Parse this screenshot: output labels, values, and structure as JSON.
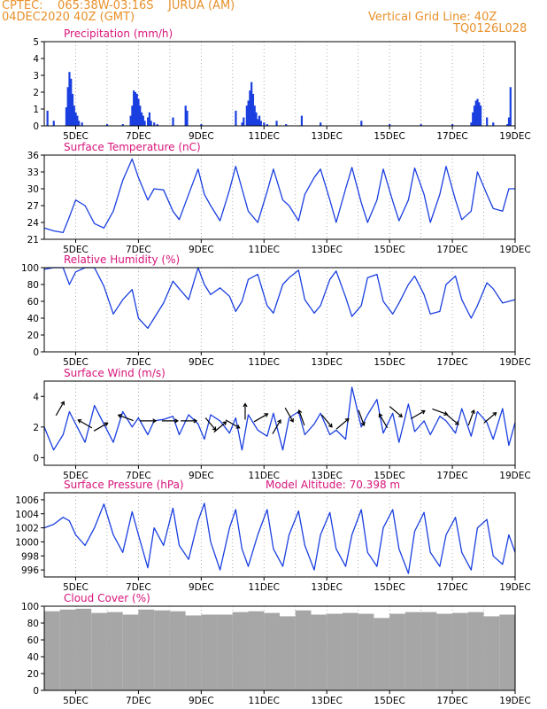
{
  "header": {
    "line1_left": "CPTEC:    065:38W-03:16S    JURUA (AM)",
    "line2_left": "04DEC2020 40Z (GMT)",
    "line1_right": "Vertical Grid Line: 40Z",
    "line2_right": "TQ0126L028"
  },
  "colors": {
    "header": "#e8902a",
    "title": "#d8147a",
    "series": "#1a3fe0",
    "cloud": "#a6a6a6",
    "wind_arrow": "#000000",
    "grid": "#999999"
  },
  "x_axis": {
    "ticks": [
      "5DEC",
      "7DEC",
      "9DEC",
      "11DEC",
      "13DEC",
      "15DEC",
      "17DEC",
      "19DEC"
    ],
    "day_range": [
      4,
      19
    ]
  },
  "chart_data": [
    {
      "type": "bar",
      "title": "Precipitation (mm/h)",
      "ylim": [
        0,
        5
      ],
      "yticks": [
        "0",
        "1",
        "2",
        "3",
        "4",
        "5"
      ],
      "x": [
        4.1,
        4.3,
        4.7,
        4.75,
        4.8,
        4.85,
        4.9,
        4.95,
        5.0,
        5.05,
        5.1,
        5.2,
        6.0,
        6.5,
        6.75,
        6.8,
        6.85,
        6.9,
        6.95,
        7.0,
        7.05,
        7.1,
        7.15,
        7.2,
        7.3,
        7.35,
        7.4,
        7.5,
        7.6,
        8.1,
        8.5,
        8.55,
        9.0,
        10.1,
        10.3,
        10.35,
        10.45,
        10.5,
        10.55,
        10.6,
        10.65,
        10.7,
        10.75,
        10.8,
        10.85,
        10.9,
        11.0,
        11.1,
        11.4,
        11.7,
        12.2,
        12.8,
        14.1,
        15.0,
        16.0,
        17.0,
        17.6,
        17.65,
        17.7,
        17.75,
        17.8,
        17.85,
        17.9,
        18.1,
        18.3,
        18.75,
        18.8,
        18.85
      ],
      "values": [
        0.9,
        0.3,
        1.1,
        2.3,
        3.2,
        2.8,
        1.9,
        1.2,
        0.8,
        0.6,
        0.3,
        0.2,
        0.1,
        0.1,
        0.6,
        1.2,
        2.1,
        2.0,
        1.9,
        1.6,
        1.2,
        0.8,
        0.6,
        0.3,
        0.5,
        0.8,
        0.3,
        0.2,
        0.1,
        0.5,
        1.2,
        0.9,
        0.1,
        0.9,
        0.2,
        0.5,
        1.2,
        1.5,
        2.1,
        2.6,
        1.9,
        1.2,
        0.8,
        0.4,
        0.6,
        0.3,
        0.2,
        0.1,
        0.3,
        0.1,
        0.6,
        0.2,
        0.3,
        0.1,
        0.1,
        0.1,
        0.2,
        0.8,
        1.2,
        1.5,
        1.6,
        1.4,
        1.2,
        0.5,
        0.2,
        0.1,
        0.5,
        2.3
      ]
    },
    {
      "type": "line",
      "title": "Surface Temperature (nC)",
      "ylim": [
        21,
        36
      ],
      "yticks": [
        "21",
        "24",
        "27",
        "30",
        "33",
        "36"
      ],
      "x": [
        4.0,
        4.3,
        4.6,
        4.8,
        5.0,
        5.3,
        5.6,
        5.9,
        6.2,
        6.5,
        6.8,
        7.0,
        7.3,
        7.5,
        7.8,
        8.1,
        8.3,
        8.6,
        8.9,
        9.1,
        9.3,
        9.6,
        9.9,
        10.1,
        10.3,
        10.5,
        10.8,
        11.1,
        11.3,
        11.6,
        11.8,
        12.1,
        12.3,
        12.6,
        12.8,
        13.1,
        13.3,
        13.6,
        13.8,
        14.1,
        14.3,
        14.6,
        14.8,
        15.1,
        15.3,
        15.6,
        15.8,
        16.1,
        16.3,
        16.6,
        16.8,
        17.1,
        17.3,
        17.6,
        17.8,
        18.1,
        18.3,
        18.6,
        18.8,
        19.0
      ],
      "values": [
        23.0,
        22.5,
        22.2,
        25.0,
        28.0,
        27.0,
        23.8,
        23.0,
        26.0,
        31.5,
        35.3,
        32.0,
        28.0,
        30.0,
        29.8,
        26.0,
        24.5,
        29.0,
        33.5,
        29.0,
        27.0,
        24.3,
        29.8,
        34.0,
        30.0,
        26.0,
        24.0,
        29.5,
        33.5,
        28.0,
        27.0,
        24.3,
        29.0,
        32.0,
        33.5,
        28.0,
        24.0,
        30.0,
        33.8,
        27.5,
        24.0,
        28.0,
        33.5,
        27.8,
        24.3,
        28.0,
        33.7,
        29.0,
        24.0,
        29.0,
        34.0,
        28.0,
        24.5,
        26.0,
        33.0,
        29.0,
        26.5,
        26.0,
        30.0,
        30.0
      ]
    },
    {
      "type": "line",
      "title": "Relative Humidity (%)",
      "ylim": [
        0,
        100
      ],
      "yticks": [
        "0",
        "20",
        "40",
        "60",
        "80",
        "100"
      ],
      "x": [
        4.0,
        4.3,
        4.6,
        4.8,
        5.0,
        5.3,
        5.6,
        5.9,
        6.2,
        6.5,
        6.8,
        7.0,
        7.3,
        7.5,
        7.8,
        8.1,
        8.3,
        8.6,
        8.9,
        9.1,
        9.3,
        9.6,
        9.9,
        10.1,
        10.3,
        10.5,
        10.8,
        11.1,
        11.3,
        11.6,
        11.8,
        12.1,
        12.3,
        12.6,
        12.8,
        13.1,
        13.3,
        13.6,
        13.8,
        14.1,
        14.3,
        14.6,
        14.8,
        15.1,
        15.3,
        15.6,
        15.8,
        16.1,
        16.3,
        16.6,
        16.8,
        17.1,
        17.3,
        17.6,
        17.8,
        18.1,
        18.3,
        18.6,
        18.8,
        19.0
      ],
      "values": [
        98,
        100,
        100,
        80,
        95,
        100,
        100,
        78,
        45,
        62,
        74,
        40,
        28,
        40,
        58,
        84,
        75,
        62,
        100,
        80,
        68,
        76,
        66,
        48,
        60,
        86,
        92,
        55,
        46,
        80,
        88,
        97,
        62,
        46,
        55,
        86,
        96,
        65,
        42,
        55,
        88,
        92,
        60,
        45,
        58,
        80,
        90,
        68,
        45,
        48,
        80,
        90,
        62,
        40,
        55,
        82,
        75,
        58,
        60,
        62
      ]
    },
    {
      "type": "line",
      "title": "Surface Wind (m/s)",
      "ylim": [
        -0.5,
        5
      ],
      "yticks": [
        "0",
        "2",
        "4"
      ],
      "x": [
        4.0,
        4.3,
        4.6,
        4.8,
        5.0,
        5.3,
        5.6,
        5.9,
        6.2,
        6.5,
        6.8,
        7.0,
        7.3,
        7.5,
        7.8,
        8.1,
        8.3,
        8.6,
        8.9,
        9.1,
        9.3,
        9.6,
        9.9,
        10.1,
        10.3,
        10.5,
        10.8,
        11.1,
        11.3,
        11.6,
        11.8,
        12.1,
        12.3,
        12.6,
        12.8,
        13.1,
        13.3,
        13.6,
        13.8,
        14.1,
        14.3,
        14.6,
        14.8,
        15.1,
        15.3,
        15.6,
        15.8,
        16.1,
        16.3,
        16.6,
        16.8,
        17.1,
        17.3,
        17.6,
        17.8,
        18.1,
        18.3,
        18.6,
        18.8,
        19.0
      ],
      "values": [
        2.0,
        0.5,
        1.5,
        3.0,
        2.2,
        1.0,
        3.4,
        2.2,
        1.0,
        3.0,
        2.0,
        2.6,
        1.5,
        2.4,
        2.5,
        2.7,
        1.5,
        2.8,
        2.2,
        1.2,
        2.8,
        2.4,
        1.6,
        2.6,
        0.5,
        2.8,
        1.8,
        1.4,
        2.9,
        0.5,
        2.6,
        3.0,
        1.5,
        2.2,
        2.9,
        1.5,
        1.8,
        1.2,
        4.6,
        2.0,
        2.8,
        3.8,
        1.6,
        2.9,
        1.0,
        3.5,
        1.7,
        2.4,
        1.5,
        2.7,
        2.4,
        1.6,
        3.2,
        1.4,
        3.0,
        2.3,
        1.2,
        3.2,
        0.8,
        2.3
      ]
    },
    {
      "type": "line",
      "title": "Surface Pressure (hPa)",
      "annotation": "Model Altitude: 70.398 m",
      "ylim": [
        995,
        1007
      ],
      "yticks": [
        "996",
        "998",
        "1000",
        "1002",
        "1004",
        "1006"
      ],
      "x": [
        4.0,
        4.3,
        4.6,
        4.8,
        5.0,
        5.3,
        5.6,
        5.9,
        6.2,
        6.5,
        6.8,
        7.0,
        7.3,
        7.5,
        7.8,
        8.1,
        8.3,
        8.6,
        8.9,
        9.1,
        9.3,
        9.6,
        9.9,
        10.1,
        10.3,
        10.5,
        10.8,
        11.1,
        11.3,
        11.6,
        11.8,
        12.1,
        12.3,
        12.6,
        12.8,
        13.1,
        13.3,
        13.6,
        13.8,
        14.1,
        14.3,
        14.6,
        14.8,
        15.1,
        15.3,
        15.6,
        15.8,
        16.1,
        16.3,
        16.6,
        16.8,
        17.1,
        17.3,
        17.6,
        17.8,
        18.1,
        18.3,
        18.6,
        18.8,
        19.0
      ],
      "values": [
        1002.0,
        1002.5,
        1003.5,
        1003.0,
        1001.0,
        999.5,
        1002.0,
        1005.4,
        1001.0,
        998.5,
        1004.3,
        1001.0,
        996.3,
        1002.0,
        999.5,
        1004.8,
        999.5,
        997.5,
        1003.0,
        1005.5,
        1000.0,
        996.0,
        1002.0,
        1004.6,
        999.0,
        996.5,
        1001.0,
        1004.6,
        999.0,
        996.5,
        1001.0,
        1004.4,
        999.5,
        996.0,
        1001.0,
        1004.2,
        999.0,
        996.5,
        1001.0,
        1004.6,
        998.5,
        996.5,
        1002.0,
        1004.6,
        999.0,
        995.5,
        1001.5,
        1004.2,
        998.5,
        996.5,
        1001.0,
        1003.5,
        998.5,
        996.0,
        1002.0,
        1003.2,
        998.0,
        996.8,
        1001.0,
        998.5
      ]
    },
    {
      "type": "area",
      "title": "Cloud Cover (%)",
      "ylim": [
        0,
        100
      ],
      "yticks": [
        "0",
        "20",
        "40",
        "60",
        "80",
        "100"
      ],
      "x": [
        4.0,
        4.5,
        5.0,
        5.5,
        6.0,
        6.5,
        7.0,
        7.5,
        8.0,
        8.5,
        9.0,
        9.5,
        10.0,
        10.5,
        11.0,
        11.5,
        12.0,
        12.5,
        13.0,
        13.5,
        14.0,
        14.5,
        15.0,
        15.5,
        16.0,
        16.5,
        17.0,
        17.5,
        18.0,
        18.5,
        19.0
      ],
      "values": [
        94,
        96,
        97,
        92,
        93,
        90,
        96,
        95,
        94,
        89,
        90,
        90,
        93,
        94,
        92,
        88,
        95,
        90,
        91,
        92,
        91,
        86,
        91,
        93,
        93,
        91,
        92,
        93,
        88,
        90,
        86
      ]
    }
  ]
}
